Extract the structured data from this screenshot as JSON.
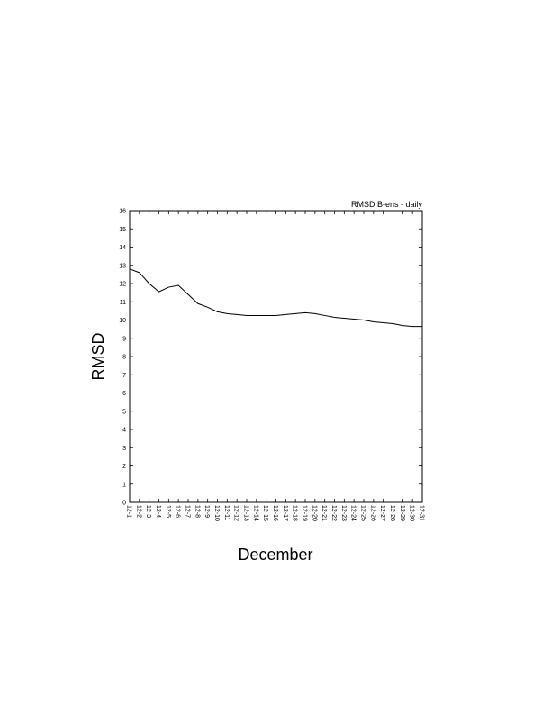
{
  "chart_data": {
    "type": "line",
    "title": "RMSD B-ens - daily",
    "y_label": "RMSD",
    "x_label": "December",
    "categories": [
      "12-1",
      "12-2",
      "12-3",
      "12-4",
      "12-5",
      "12-6",
      "12-7",
      "12-8",
      "12-9",
      "12-10",
      "12-11",
      "12-12",
      "12-13",
      "12-14",
      "12-15",
      "12-16",
      "12-17",
      "12-18",
      "12-19",
      "12-20",
      "12-21",
      "12-22",
      "12-23",
      "12-24",
      "12-25",
      "12-26",
      "12-27",
      "12-28",
      "12-29",
      "12-30",
      "12-31"
    ],
    "series": [
      {
        "color": "#000000",
        "values": [
          12.8,
          12.6,
          12.0,
          11.55,
          11.8,
          11.9,
          11.4,
          10.9,
          10.7,
          10.45,
          10.35,
          10.3,
          10.25,
          10.25,
          10.25,
          10.25,
          10.3,
          10.35,
          10.4,
          10.35,
          10.25,
          10.15,
          10.1,
          10.05,
          10.0,
          9.9,
          9.85,
          9.8,
          9.7,
          9.65,
          9.65
        ]
      }
    ],
    "ylim": [
      0,
      16
    ],
    "yticks": [
      0,
      1,
      2,
      3,
      4,
      5,
      6,
      7,
      8,
      9,
      10,
      11,
      12,
      13,
      14,
      15,
      16
    ],
    "grid": false
  }
}
